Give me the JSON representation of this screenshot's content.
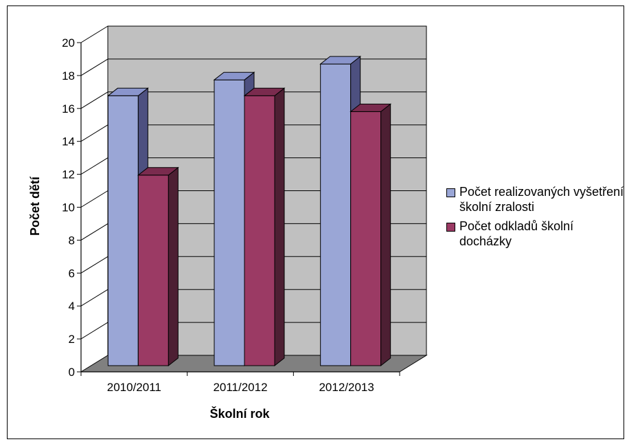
{
  "chart_data": {
    "type": "bar",
    "title": "",
    "xlabel": "Školní rok",
    "ylabel": "Počet dětí",
    "categories": [
      "2010/2011",
      "2011/2012",
      "2012/2013"
    ],
    "ylim": [
      0,
      20
    ],
    "yticks": [
      "0",
      "2",
      "4",
      "6",
      "8",
      "10",
      "12",
      "14",
      "16",
      "18",
      "20"
    ],
    "grid": true,
    "legend_position": "right",
    "series": [
      {
        "name": "Počet realizovaných vyšetření školní zralosti",
        "values": [
          17,
          18,
          19
        ],
        "color": "#9aa6d6"
      },
      {
        "name": "Počet odkladů školní docházky",
        "values": [
          12,
          17,
          16
        ],
        "color": "#9b3a64"
      }
    ],
    "colors": {
      "back_wall": "#c0c0c0",
      "floor": "#808080",
      "series1_side": "#4d5080",
      "series1_top": "#8a95cc",
      "series2_side": "#4d1f33",
      "series2_top": "#7a2b4e"
    }
  }
}
